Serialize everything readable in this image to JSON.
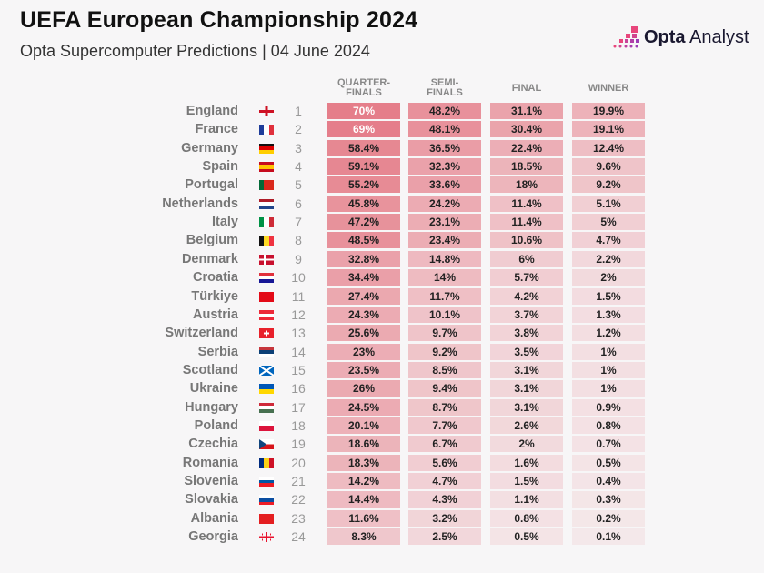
{
  "header": {
    "title": "UEFA European Championship 2024",
    "subtitle": "Opta Supercomputer Predictions | 04 June 2024",
    "logo_bold": "Opta",
    "logo_rest": " Analyst"
  },
  "colors": {
    "cell": "#e0606e",
    "logo_pink": "#e8467c",
    "logo_purple": "#9b3bb5"
  },
  "chart_data": {
    "type": "table",
    "columns": [
      "QUARTER-\nFINALS",
      "SEMI-\nFINALS",
      "FINAL",
      "WINNER"
    ],
    "column_labels": [
      [
        "QUARTER-",
        "FINALS"
      ],
      [
        "SEMI-",
        "FINALS"
      ],
      [
        "FINAL",
        ""
      ],
      [
        "WINNER",
        ""
      ]
    ],
    "rows": [
      {
        "team": "England",
        "rank": "1",
        "values": [
          "70%",
          "48.2%",
          "31.1%",
          "19.9%"
        ],
        "flag": {
          "type": "england"
        }
      },
      {
        "team": "France",
        "rank": "2",
        "values": [
          "69%",
          "48.1%",
          "30.4%",
          "19.1%"
        ],
        "flag": {
          "dir": "v",
          "colors": [
            "#1f3d9a",
            "#ffffff",
            "#e0303c"
          ]
        }
      },
      {
        "team": "Germany",
        "rank": "3",
        "values": [
          "58.4%",
          "36.5%",
          "22.4%",
          "12.4%"
        ],
        "flag": {
          "dir": "h",
          "colors": [
            "#111111",
            "#dd0000",
            "#ffce00"
          ]
        }
      },
      {
        "team": "Spain",
        "rank": "4",
        "values": [
          "59.1%",
          "32.3%",
          "18.5%",
          "9.6%"
        ],
        "flag": {
          "dir": "h",
          "colors": [
            "#c60b1e",
            "#ffc400",
            "#ffc400",
            "#c60b1e"
          ]
        }
      },
      {
        "team": "Portugal",
        "rank": "5",
        "values": [
          "55.2%",
          "33.6%",
          "18%",
          "9.2%"
        ],
        "flag": {
          "dir": "v",
          "colors": [
            "#046a38",
            "#da291c",
            "#da291c"
          ]
        }
      },
      {
        "team": "Netherlands",
        "rank": "6",
        "values": [
          "45.8%",
          "24.2%",
          "11.4%",
          "5.1%"
        ],
        "flag": {
          "dir": "h",
          "colors": [
            "#ae1c28",
            "#ffffff",
            "#21468b"
          ]
        }
      },
      {
        "team": "Italy",
        "rank": "7",
        "values": [
          "47.2%",
          "23.1%",
          "11.4%",
          "5%"
        ],
        "flag": {
          "dir": "v",
          "colors": [
            "#009246",
            "#ffffff",
            "#ce2b37"
          ]
        }
      },
      {
        "team": "Belgium",
        "rank": "8",
        "values": [
          "48.5%",
          "23.4%",
          "10.6%",
          "4.7%"
        ],
        "flag": {
          "dir": "v",
          "colors": [
            "#111111",
            "#fdda24",
            "#ef3340"
          ]
        }
      },
      {
        "team": "Denmark",
        "rank": "9",
        "values": [
          "32.8%",
          "14.8%",
          "6%",
          "2.2%"
        ],
        "flag": {
          "type": "denmark"
        }
      },
      {
        "team": "Croatia",
        "rank": "10",
        "values": [
          "34.4%",
          "14%",
          "5.7%",
          "2%"
        ],
        "flag": {
          "dir": "h",
          "colors": [
            "#e0303c",
            "#ffffff",
            "#171796"
          ]
        }
      },
      {
        "team": "Türkiye",
        "rank": "11",
        "values": [
          "27.4%",
          "11.7%",
          "4.2%",
          "1.5%"
        ],
        "flag": {
          "dir": "h",
          "colors": [
            "#e30a17"
          ]
        }
      },
      {
        "team": "Austria",
        "rank": "12",
        "values": [
          "24.3%",
          "10.1%",
          "3.7%",
          "1.3%"
        ],
        "flag": {
          "dir": "h",
          "colors": [
            "#ed2939",
            "#ffffff",
            "#ed2939"
          ]
        }
      },
      {
        "team": "Switzerland",
        "rank": "13",
        "values": [
          "25.6%",
          "9.7%",
          "3.8%",
          "1.2%"
        ],
        "flag": {
          "type": "swiss"
        }
      },
      {
        "team": "Serbia",
        "rank": "14",
        "values": [
          "23%",
          "9.2%",
          "3.5%",
          "1%"
        ],
        "flag": {
          "dir": "h",
          "colors": [
            "#c6363c",
            "#0c4076",
            "#ffffff"
          ]
        }
      },
      {
        "team": "Scotland",
        "rank": "15",
        "values": [
          "23.5%",
          "8.5%",
          "3.1%",
          "1%"
        ],
        "flag": {
          "type": "scotland"
        }
      },
      {
        "team": "Ukraine",
        "rank": "16",
        "values": [
          "26%",
          "9.4%",
          "3.1%",
          "1%"
        ],
        "flag": {
          "dir": "h",
          "colors": [
            "#0057b7",
            "#ffd700"
          ]
        }
      },
      {
        "team": "Hungary",
        "rank": "17",
        "values": [
          "24.5%",
          "8.7%",
          "3.1%",
          "0.9%"
        ],
        "flag": {
          "dir": "h",
          "colors": [
            "#ce2939",
            "#ffffff",
            "#477050"
          ]
        }
      },
      {
        "team": "Poland",
        "rank": "18",
        "values": [
          "20.1%",
          "7.7%",
          "2.6%",
          "0.8%"
        ],
        "flag": {
          "dir": "h",
          "colors": [
            "#ffffff",
            "#dc143c"
          ]
        }
      },
      {
        "team": "Czechia",
        "rank": "19",
        "values": [
          "18.6%",
          "6.7%",
          "2%",
          "0.7%"
        ],
        "flag": {
          "type": "czech"
        }
      },
      {
        "team": "Romania",
        "rank": "20",
        "values": [
          "18.3%",
          "5.6%",
          "1.6%",
          "0.5%"
        ],
        "flag": {
          "dir": "v",
          "colors": [
            "#002b7f",
            "#fcd116",
            "#ce1126"
          ]
        }
      },
      {
        "team": "Slovenia",
        "rank": "21",
        "values": [
          "14.2%",
          "4.7%",
          "1.5%",
          "0.4%"
        ],
        "flag": {
          "dir": "h",
          "colors": [
            "#ffffff",
            "#0057a6",
            "#ed1c24"
          ]
        }
      },
      {
        "team": "Slovakia",
        "rank": "22",
        "values": [
          "14.4%",
          "4.3%",
          "1.1%",
          "0.3%"
        ],
        "flag": {
          "dir": "h",
          "colors": [
            "#ffffff",
            "#0b4ea2",
            "#ee1c25"
          ]
        }
      },
      {
        "team": "Albania",
        "rank": "23",
        "values": [
          "11.6%",
          "3.2%",
          "0.8%",
          "0.2%"
        ],
        "flag": {
          "dir": "h",
          "colors": [
            "#e41e20"
          ]
        }
      },
      {
        "team": "Georgia",
        "rank": "24",
        "values": [
          "8.3%",
          "2.5%",
          "0.5%",
          "0.1%"
        ],
        "flag": {
          "type": "georgia"
        }
      }
    ]
  }
}
